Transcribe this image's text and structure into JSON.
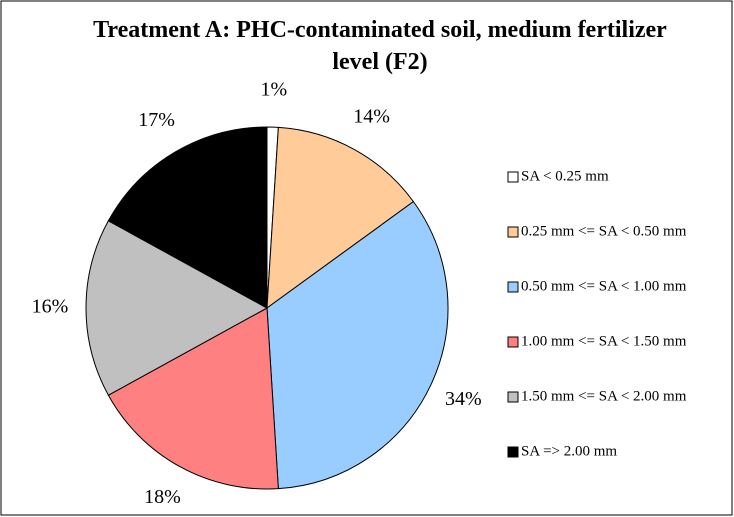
{
  "chart_data": {
    "type": "pie",
    "title": "Treatment A: PHC-contaminated soil, medium fertilizer level (F2)",
    "categories": [
      "SA < 0.25 mm",
      "0.25 mm <= SA < 0.50 mm",
      "0.50 mm <= SA < 1.00 mm",
      "1.00 mm <= SA < 1.50 mm",
      "1.50 mm <= SA < 2.00 mm",
      "SA => 2.00 mm"
    ],
    "values": [
      1,
      14,
      34,
      18,
      16,
      17
    ],
    "value_labels": [
      "1%",
      "14%",
      "34%",
      "18%",
      "16%",
      "17%"
    ],
    "colors": [
      "#ffffff",
      "#ffcc99",
      "#99ccff",
      "#ff8080",
      "#c0c0c0",
      "#000000"
    ],
    "legend": "right"
  }
}
